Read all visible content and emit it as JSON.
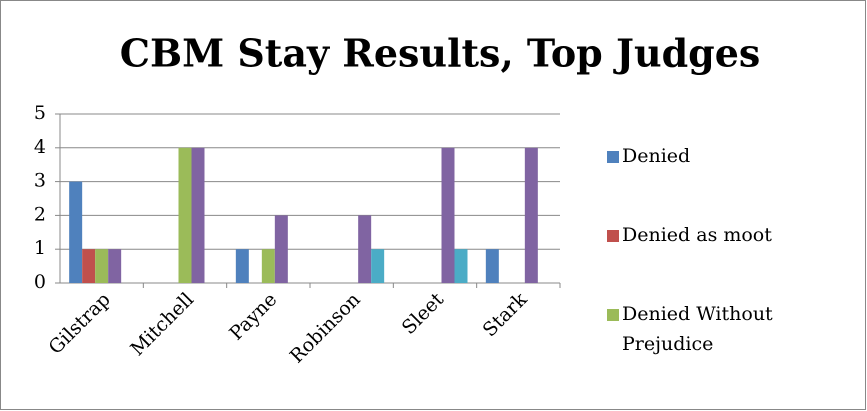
{
  "chart_data": {
    "type": "bar",
    "title": "CBM Stay Results, Top Judges",
    "categories": [
      "Gilstrap",
      "Mitchell",
      "Payne",
      "Robinson",
      "Sleet",
      "Stark"
    ],
    "series": [
      {
        "name": "Denied",
        "color": "#4f81bd",
        "values": [
          3,
          0,
          1,
          0,
          0,
          1
        ]
      },
      {
        "name": "Denied as moot",
        "color": "#c0504d",
        "values": [
          1,
          0,
          0,
          0,
          0,
          0
        ]
      },
      {
        "name": "Denied Without Prejudice",
        "color": "#9bbb59",
        "values": [
          1,
          4,
          1,
          0,
          0,
          0
        ]
      },
      {
        "color": "#8064a2",
        "values": [
          1,
          4,
          2,
          2,
          4,
          4
        ]
      },
      {
        "color": "#4bacc6",
        "values": [
          0,
          0,
          0,
          1,
          1,
          0
        ]
      }
    ],
    "ylim": [
      0,
      5
    ],
    "yticks": [
      0,
      1,
      2,
      3,
      4,
      5
    ],
    "grid": true
  }
}
